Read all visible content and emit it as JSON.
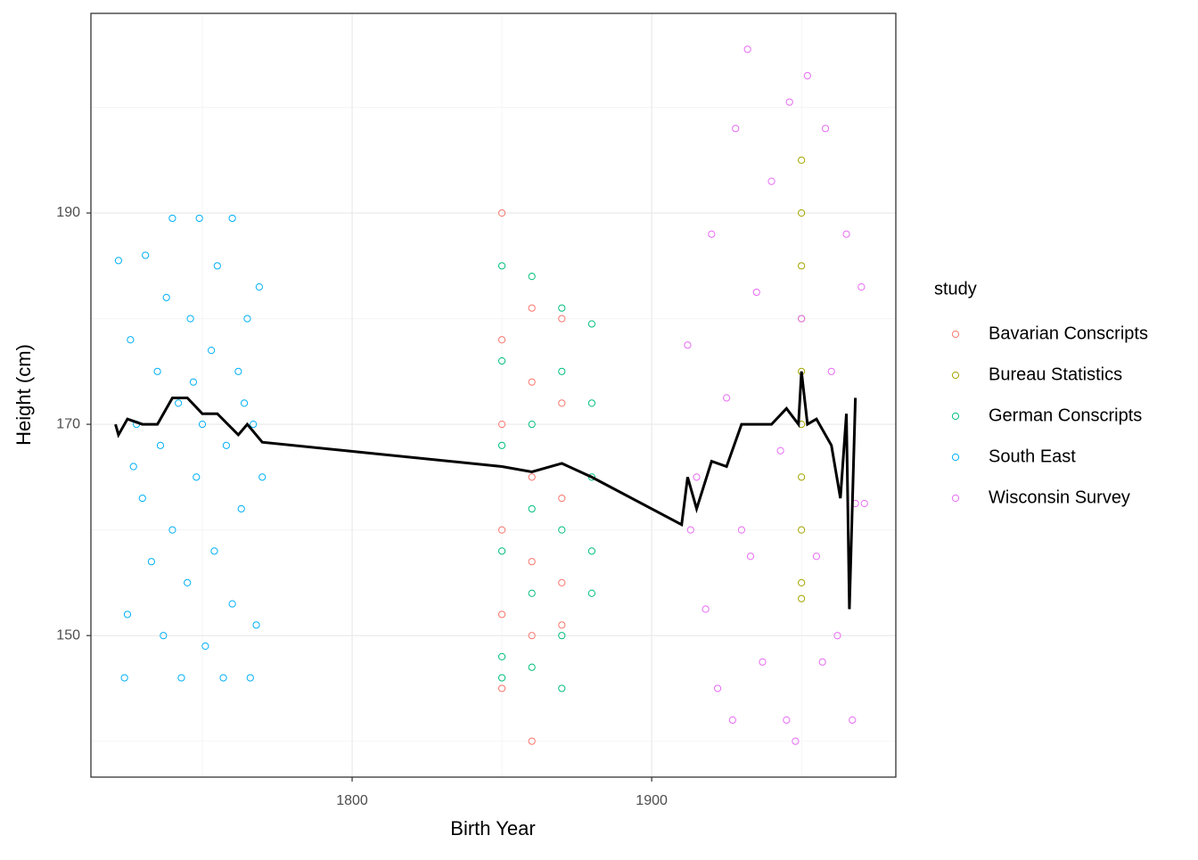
{
  "chart_data": {
    "type": "scatter",
    "x_label": "Birth Year",
    "y_label": "Height (cm)",
    "xlim": [
      1712.8,
      1981.5
    ],
    "ylim": [
      136.6,
      208.9
    ],
    "xticks": [
      1800,
      1900
    ],
    "yticks": [
      150,
      170,
      190
    ],
    "x_minor_grid": [
      1750,
      1850,
      1950
    ],
    "y_minor_grid": [
      140,
      160,
      180,
      200
    ],
    "grid": true,
    "legend_position": "right",
    "legend_title": "study",
    "series": [
      {
        "name": "Bavarian Conscripts",
        "color": "#F8766D",
        "x": [
          1850,
          1850,
          1850,
          1850,
          1850,
          1850,
          1860,
          1860,
          1860,
          1860,
          1860,
          1860,
          1870,
          1870,
          1870,
          1870,
          1870
        ],
        "y": [
          190,
          178,
          170,
          160,
          152,
          145,
          181,
          174,
          165,
          157,
          150,
          140,
          180,
          172,
          163,
          155,
          151
        ]
      },
      {
        "name": "Bureau Statistics",
        "color": "#A3A500",
        "x": [
          1950,
          1950,
          1950,
          1950,
          1950,
          1950,
          1950,
          1950,
          1950,
          1950
        ],
        "y": [
          195,
          190,
          185,
          180,
          175,
          170,
          165,
          160,
          155,
          153.5
        ]
      },
      {
        "name": "German Conscripts",
        "color": "#00BF7D",
        "x": [
          1850,
          1850,
          1850,
          1850,
          1850,
          1850,
          1860,
          1860,
          1860,
          1860,
          1860,
          1870,
          1870,
          1870,
          1870,
          1870,
          1880,
          1880,
          1880,
          1880,
          1880
        ],
        "y": [
          185,
          176,
          168,
          158,
          148,
          146,
          184,
          170,
          162,
          154,
          147,
          181,
          175,
          160,
          150,
          145,
          179.5,
          172,
          165,
          158,
          154
        ]
      },
      {
        "name": "South East",
        "color": "#00B0F6",
        "x": [
          1722,
          1724,
          1725,
          1726,
          1728,
          1730,
          1731,
          1733,
          1735,
          1736,
          1737,
          1738,
          1740,
          1740,
          1742,
          1743,
          1745,
          1746,
          1748,
          1749,
          1750,
          1751,
          1753,
          1754,
          1755,
          1757,
          1758,
          1760,
          1760,
          1762,
          1763,
          1765,
          1766,
          1767,
          1768,
          1769,
          1770,
          1727,
          1747,
          1764
        ],
        "y": [
          185.5,
          146,
          152,
          178,
          170,
          163,
          186,
          157,
          175,
          168,
          150,
          182,
          160,
          189.5,
          172,
          146,
          155,
          180,
          165,
          189.5,
          170,
          149,
          177,
          158,
          185,
          146,
          168,
          189.5,
          153,
          175,
          162,
          180,
          146,
          170,
          151,
          183,
          165,
          166,
          174,
          172
        ]
      },
      {
        "name": "Wisconsin Survey",
        "color": "#E76BF3",
        "x": [
          1912,
          1915,
          1918,
          1920,
          1922,
          1925,
          1928,
          1930,
          1932,
          1935,
          1937,
          1940,
          1943,
          1945,
          1946,
          1948,
          1950,
          1952,
          1955,
          1958,
          1960,
          1962,
          1965,
          1967,
          1968,
          1970,
          1971,
          1913,
          1927,
          1933,
          1957
        ],
        "y": [
          177.5,
          165,
          152.5,
          188,
          145,
          172.5,
          198,
          160,
          205.5,
          182.5,
          147.5,
          193,
          167.5,
          142,
          200.5,
          140,
          180,
          203,
          157.5,
          198,
          175,
          150,
          188,
          142,
          162.5,
          183,
          162.5,
          160,
          142,
          157.5,
          147.5
        ]
      }
    ],
    "smooth": {
      "color": "#000000",
      "x": [
        1721,
        1722,
        1725,
        1730,
        1735,
        1740,
        1745,
        1750,
        1755,
        1762,
        1765,
        1770,
        1850,
        1860,
        1870,
        1880,
        1910,
        1912,
        1915,
        1920,
        1925,
        1930,
        1935,
        1940,
        1945,
        1949,
        1950,
        1952,
        1955,
        1960,
        1963,
        1965,
        1966,
        1968
      ],
      "y": [
        170,
        169,
        170.5,
        170,
        170,
        172.5,
        172.5,
        171,
        171,
        169,
        170,
        168.3,
        166,
        165.5,
        166.3,
        165,
        160.5,
        165,
        162,
        166.5,
        166,
        170,
        170,
        170,
        171.5,
        170,
        175,
        170,
        170.5,
        168,
        163,
        171,
        152.5,
        172.5
      ]
    }
  }
}
